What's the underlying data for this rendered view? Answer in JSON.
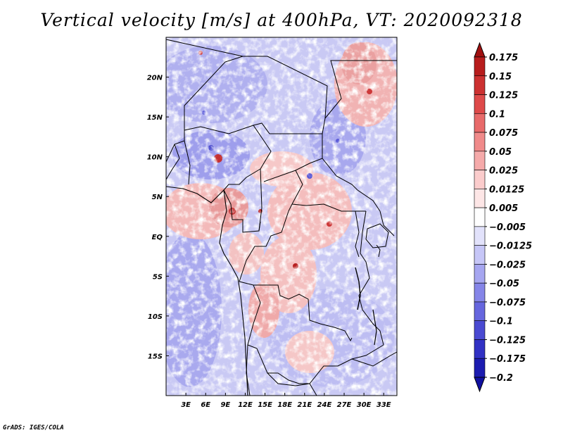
{
  "title": "Vertical velocity [m/s] at 400hPa, VT: 2020092318",
  "credit": "GrADS: IGES/COLA",
  "map": {
    "lat_ticks": [
      "20N",
      "15N",
      "10N",
      "5N",
      "EQ",
      "5S",
      "10S",
      "15S"
    ],
    "lon_ticks": [
      "3E",
      "6E",
      "9E",
      "12E",
      "15E",
      "18E",
      "21E",
      "24E",
      "27E",
      "30E",
      "33E"
    ],
    "lat_values": [
      20,
      15,
      10,
      5,
      0,
      -5,
      -10,
      -15
    ],
    "lon_values": [
      3,
      6,
      9,
      12,
      15,
      18,
      21,
      24,
      27,
      30,
      33
    ],
    "extent": {
      "lon_min": 0,
      "lon_max": 35,
      "lat_min": -20,
      "lat_max": 25
    }
  },
  "colorbar": {
    "labels": [
      "0.175",
      "0.15",
      "0.125",
      "0.1",
      "0.075",
      "0.05",
      "0.025",
      "0.0125",
      "0.005",
      "−0.005",
      "−0.0125",
      "−0.025",
      "−0.05",
      "−0.075",
      "−0.1",
      "−0.125",
      "−0.175",
      "−0.2"
    ],
    "colors": [
      "#a01010",
      "#b71d1d",
      "#cc3131",
      "#de4a4a",
      "#e86a6a",
      "#f08a8a",
      "#f5aaaa",
      "#fbcccc",
      "#fde6e6",
      "#ffffff",
      "#e2e2fb",
      "#c6c6f7",
      "#a6a6f0",
      "#8585e8",
      "#6666de",
      "#4a4ad2",
      "#3131c4",
      "#1c1cb0",
      "#1010a0"
    ]
  }
}
